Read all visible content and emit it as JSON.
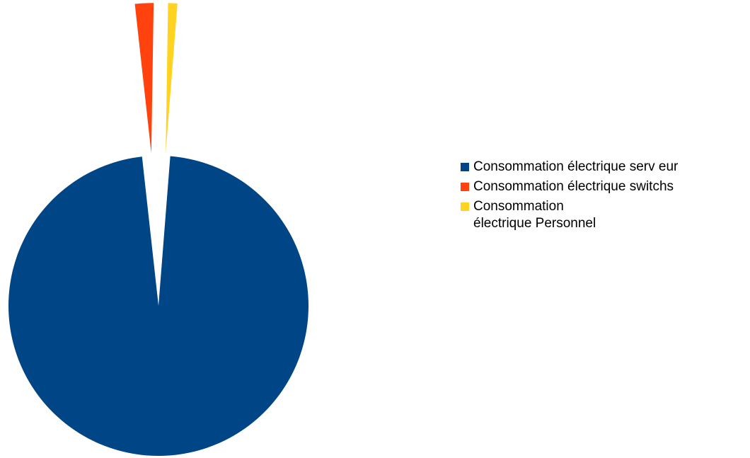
{
  "chart_data": {
    "type": "pie",
    "exploded": true,
    "categories": [
      "Consommation électrique serv eur",
      "Consommation électrique switchs",
      "Consommation électrique Personnel"
    ],
    "values": [
      97,
      2,
      1
    ],
    "colors": [
      "#004586",
      "#ff420e",
      "#ffd320"
    ],
    "legend_position": "right"
  },
  "legend": {
    "items": [
      {
        "label": "Consommation électrique serv eur",
        "color": "#004586"
      },
      {
        "label": "Consommation électrique switchs",
        "color": "#ff420e"
      },
      {
        "label": "Consommation électrique Personnel",
        "color": "#ffd320"
      }
    ]
  }
}
